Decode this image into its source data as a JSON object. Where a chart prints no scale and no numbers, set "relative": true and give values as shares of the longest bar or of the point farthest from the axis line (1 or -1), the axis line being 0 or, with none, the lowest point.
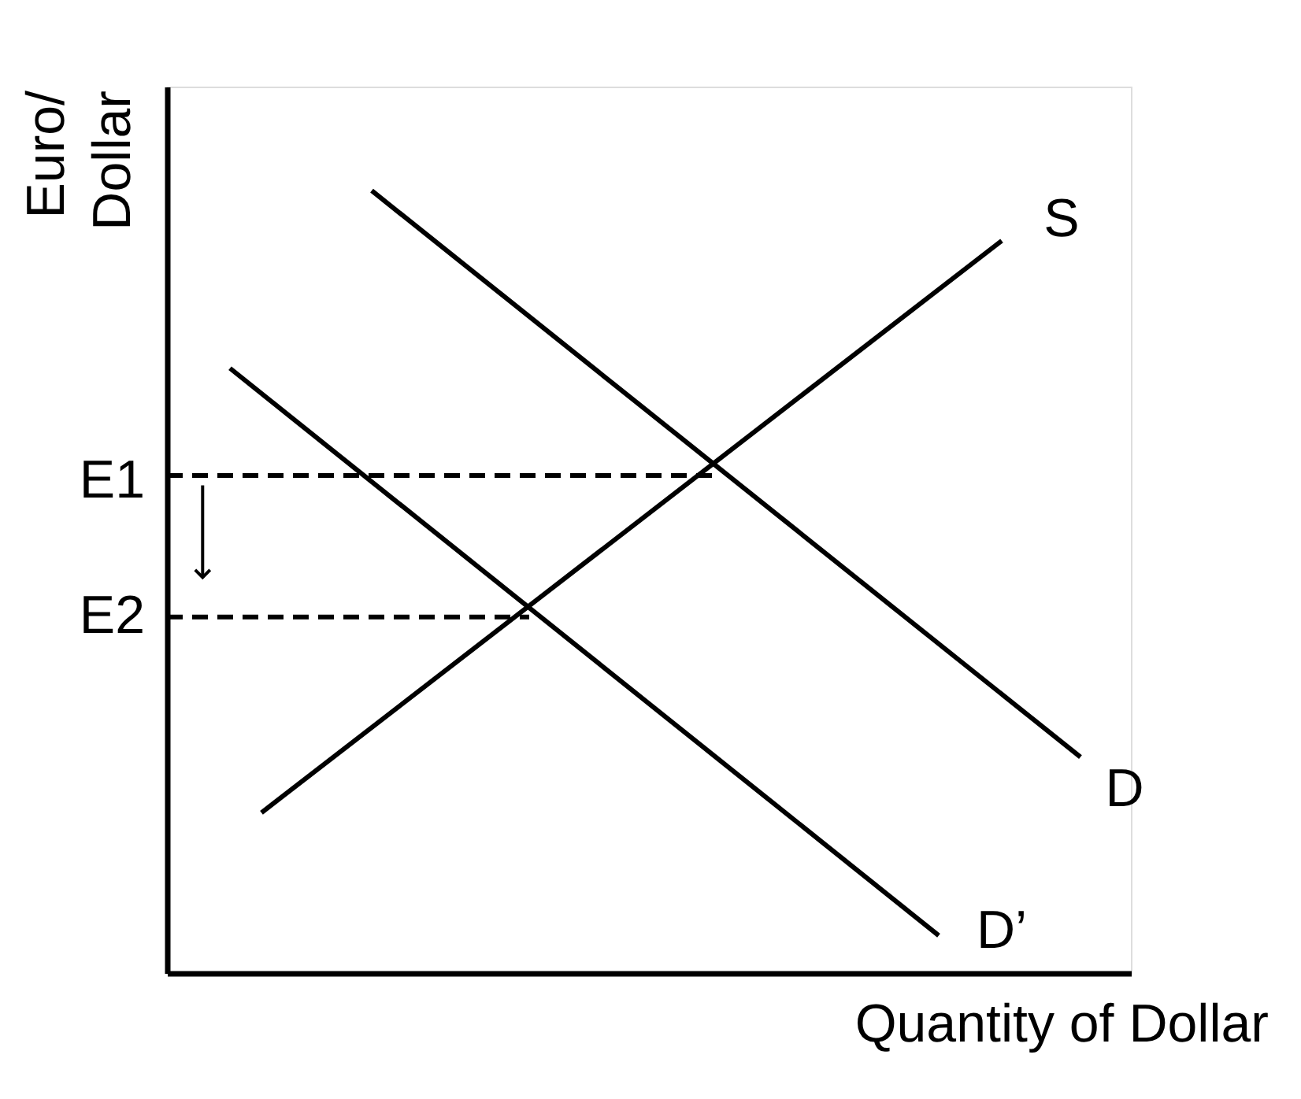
{
  "chart_data": {
    "type": "line",
    "relative": true,
    "xlabel": "Quantity of Dollar",
    "ylabel": "Euro/\nDollar",
    "categories": [
      null,
      null,
      null,
      null,
      null,
      null,
      null,
      null,
      null,
      null,
      null,
      null,
      null,
      null,
      null,
      null,
      null,
      null,
      null,
      null,
      null,
      null,
      null,
      null,
      null,
      null,
      null,
      null,
      null,
      null,
      null,
      null,
      null,
      null,
      null,
      null,
      null,
      null,
      null,
      null,
      null,
      null,
      null,
      null,
      null,
      null,
      null,
      null,
      null,
      null,
      null,
      null,
      null,
      null,
      null,
      null,
      null,
      null,
      null
    ],
    "series": [
      {
        "name": "S",
        "color": "#000000",
        "values": [
          null,
          null,
          null,
          null,
          null,
          null,
          0.205,
          null,
          null,
          null,
          null,
          null,
          null,
          null,
          null,
          null,
          null,
          null,
          null,
          null,
          null,
          null,
          null,
          null,
          null,
          null,
          null,
          null,
          null,
          null,
          null,
          null,
          null,
          null,
          null,
          null,
          null,
          null,
          null,
          null,
          null,
          null,
          null,
          null,
          null,
          null,
          null,
          null,
          null,
          null,
          null,
          null,
          null,
          0.936,
          null,
          null,
          null,
          null,
          null
        ]
      },
      {
        "name": "D",
        "color": "#000000",
        "values": [
          null,
          null,
          null,
          null,
          null,
          null,
          null,
          null,
          null,
          null,
          null,
          null,
          null,
          1.0,
          null,
          null,
          null,
          null,
          null,
          null,
          null,
          null,
          null,
          null,
          null,
          null,
          null,
          null,
          null,
          null,
          null,
          null,
          null,
          null,
          null,
          null,
          null,
          null,
          null,
          null,
          null,
          null,
          null,
          null,
          null,
          null,
          null,
          null,
          null,
          null,
          null,
          null,
          null,
          null,
          null,
          null,
          null,
          null,
          0.276
        ]
      },
      {
        "name": "D’",
        "color": "#000000",
        "values": [
          null,
          null,
          null,
          null,
          0.773,
          null,
          null,
          null,
          null,
          null,
          null,
          null,
          null,
          null,
          null,
          null,
          null,
          null,
          null,
          null,
          null,
          null,
          null,
          null,
          null,
          null,
          null,
          null,
          null,
          null,
          null,
          null,
          null,
          null,
          null,
          null,
          null,
          null,
          null,
          null,
          null,
          null,
          null,
          null,
          null,
          null,
          null,
          null,
          null,
          0.048,
          null,
          null,
          null,
          null,
          null,
          null,
          null,
          null,
          null
        ]
      },
      {
        "name": "E1",
        "color": "#000000",
        "line_style": "dashed",
        "values": [
          0.636,
          null,
          null,
          null,
          null,
          null,
          null,
          null,
          null,
          null,
          null,
          null,
          null,
          null,
          null,
          null,
          null,
          null,
          null,
          null,
          null,
          null,
          null,
          null,
          null,
          null,
          null,
          null,
          null,
          null,
          null,
          null,
          null,
          null,
          null,
          0.636,
          null,
          null,
          null,
          null,
          null,
          null,
          null,
          null,
          null,
          null,
          null,
          null,
          null,
          null,
          null,
          null,
          null,
          null,
          null,
          null,
          null,
          null,
          null
        ]
      },
      {
        "name": "E2",
        "color": "#000000",
        "line_style": "dashed",
        "values": [
          0.455,
          null,
          null,
          null,
          null,
          null,
          null,
          null,
          null,
          null,
          null,
          null,
          null,
          null,
          null,
          null,
          null,
          null,
          null,
          null,
          null,
          null,
          null,
          0.455,
          null,
          null,
          null,
          null,
          null,
          null,
          null,
          null,
          null,
          null,
          null,
          null,
          null,
          null,
          null,
          null,
          null,
          null,
          null,
          null,
          null,
          null,
          null,
          null,
          null,
          null,
          null,
          null,
          null,
          null,
          null,
          null,
          null,
          null,
          null
        ]
      }
    ],
    "line_style": "solid",
    "marker": "none",
    "grid": false,
    "legend": false
  }
}
